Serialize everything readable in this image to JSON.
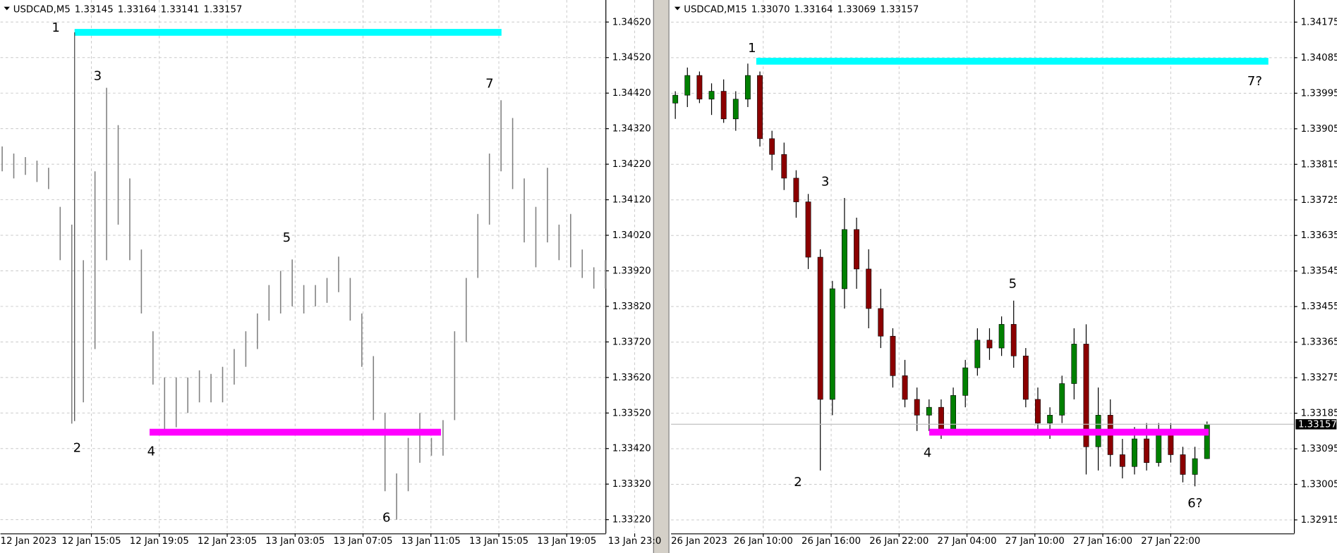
{
  "chart_data": [
    {
      "type": "range",
      "symbol": "USDCAD,M5",
      "ohlc": [
        "1.33145",
        "1.33164",
        "1.33141",
        "1.33157"
      ],
      "color": "#808080",
      "grid": true,
      "categories": [
        "12 Jan 2023",
        "12 Jan 15:05",
        "12 Jan 19:05",
        "12 Jan 23:05",
        "13 Jan 03:05",
        "13 Jan 07:05",
        "13 Jan 11:05",
        "13 Jan 15:05",
        "13 Jan 19:05",
        "13 Jan 23:0"
      ],
      "ylim": [
        1.33186,
        1.34682
      ],
      "yticks": [
        {
          "value": 1.3462,
          "label": "1.34620"
        },
        {
          "value": 1.3452,
          "label": "1.34520"
        },
        {
          "value": 1.3442,
          "label": "1.34420"
        },
        {
          "value": 1.3432,
          "label": "1.34320"
        },
        {
          "value": 1.3422,
          "label": "1.34220"
        },
        {
          "value": 1.3412,
          "label": "1.34120"
        },
        {
          "value": 1.3402,
          "label": "1.34020"
        },
        {
          "value": 1.3392,
          "label": "1.33920"
        },
        {
          "value": 1.3382,
          "label": "1.33820"
        },
        {
          "value": 1.3372,
          "label": "1.33720"
        },
        {
          "value": 1.3362,
          "label": "1.33620"
        },
        {
          "value": 1.3352,
          "label": "1.33520"
        },
        {
          "value": 1.3342,
          "label": "1.33420"
        },
        {
          "value": 1.3332,
          "label": "1.33320"
        },
        {
          "value": 1.3322,
          "label": "1.33220"
        }
      ],
      "high": [
        1.3427,
        1.3425,
        1.3424,
        1.3423,
        1.3421,
        1.341,
        1.3405,
        1.3395,
        1.342,
        1.34435,
        1.3433,
        1.3418,
        1.3398,
        1.3375,
        1.3362,
        1.3362,
        1.3362,
        1.3364,
        1.3363,
        1.3365,
        1.337,
        1.3375,
        1.338,
        1.3388,
        1.3392,
        1.33952,
        1.3388,
        1.3388,
        1.339,
        1.3396,
        1.339,
        1.338,
        1.3368,
        1.3352,
        1.3335,
        1.3345,
        1.3352,
        1.3345,
        1.335,
        1.3375,
        1.339,
        1.3408,
        1.3425,
        1.344,
        1.3435,
        1.3418,
        1.341,
        1.3421,
        1.3405,
        1.3408,
        1.3398,
        1.3393,
        1.3395
      ],
      "low": [
        1.342,
        1.3418,
        1.3419,
        1.3417,
        1.3415,
        1.3395,
        1.3349,
        1.3355,
        1.337,
        1.3395,
        1.3405,
        1.3395,
        1.338,
        1.336,
        1.33462,
        1.3348,
        1.3352,
        1.3355,
        1.3355,
        1.3355,
        1.336,
        1.3365,
        1.337,
        1.3378,
        1.338,
        1.3382,
        1.338,
        1.3382,
        1.3383,
        1.3386,
        1.3378,
        1.3365,
        1.335,
        1.333,
        1.3322,
        1.333,
        1.3338,
        1.334,
        1.334,
        1.335,
        1.3372,
        1.339,
        1.3405,
        1.342,
        1.3415,
        1.34,
        1.3393,
        1.34,
        1.3395,
        1.3393,
        1.339,
        1.3387,
        1.3387
      ],
      "levels": [
        {
          "value": 1.34591,
          "color": "#00ffff"
        },
        {
          "value": 1.33466,
          "color": "#ff00ff"
        }
      ],
      "annotations": [
        "1",
        "2",
        "3",
        "4",
        "5",
        "6",
        "7"
      ]
    },
    {
      "type": "candlestick",
      "symbol": "USDCAD,M15",
      "ohlc": [
        "1.33070",
        "1.33164",
        "1.33069",
        "1.33157"
      ],
      "up_color": "#008000",
      "down_color": "#8b0000",
      "grid": true,
      "categories": [
        "26 Jan 2023",
        "26 Jan 10:00",
        "26 Jan 16:00",
        "26 Jan 22:00",
        "27 Jan 04:00",
        "27 Jan 10:00",
        "27 Jan 16:00",
        "27 Jan 22:00"
      ],
      "ylim": [
        1.32885,
        1.34231
      ],
      "yticks": [
        {
          "value": 1.34175,
          "label": "1.34175"
        },
        {
          "value": 1.34085,
          "label": "1.34085"
        },
        {
          "value": 1.33995,
          "label": "1.33995"
        },
        {
          "value": 1.33905,
          "label": "1.33905"
        },
        {
          "value": 1.33815,
          "label": "1.33815"
        },
        {
          "value": 1.33725,
          "label": "1.33725"
        },
        {
          "value": 1.33635,
          "label": "1.33635"
        },
        {
          "value": 1.33545,
          "label": "1.33545"
        },
        {
          "value": 1.33455,
          "label": "1.33455"
        },
        {
          "value": 1.33365,
          "label": "1.33365"
        },
        {
          "value": 1.33275,
          "label": "1.33275"
        },
        {
          "value": 1.33185,
          "label": "1.33185"
        },
        {
          "value": 1.33095,
          "label": "1.33095"
        },
        {
          "value": 1.33005,
          "label": "1.33005"
        },
        {
          "value": 1.32915,
          "label": "1.32915"
        }
      ],
      "open": [
        1.3397,
        1.3399,
        1.3404,
        1.3398,
        1.34,
        1.3393,
        1.3398,
        1.3404,
        1.3388,
        1.3384,
        1.3378,
        1.3372,
        1.3358,
        1.3322,
        1.335,
        1.3365,
        1.3355,
        1.3345,
        1.3338,
        1.3328,
        1.3322,
        1.3318,
        1.332,
        1.3314,
        1.3323,
        1.333,
        1.3337,
        1.3335,
        1.3341,
        1.3333,
        1.3322,
        1.3316,
        1.3318,
        1.3326,
        1.3336,
        1.331,
        1.3318,
        1.3308,
        1.3305,
        1.3312,
        1.3306,
        1.3314,
        1.3308,
        1.3303,
        1.3307
      ],
      "high": [
        1.34,
        1.3406,
        1.3405,
        1.3402,
        1.3403,
        1.34,
        1.3407,
        1.3405,
        1.339,
        1.3387,
        1.338,
        1.3374,
        1.336,
        1.3352,
        1.3373,
        1.3368,
        1.336,
        1.335,
        1.334,
        1.3332,
        1.3325,
        1.3322,
        1.3322,
        1.3325,
        1.3332,
        1.334,
        1.334,
        1.3343,
        1.3347,
        1.3335,
        1.3325,
        1.332,
        1.3328,
        1.334,
        1.3341,
        1.3325,
        1.3322,
        1.3312,
        1.3315,
        1.3316,
        1.3316,
        1.3316,
        1.331,
        1.331,
        1.33164
      ],
      "low": [
        1.3393,
        1.3396,
        1.3397,
        1.3394,
        1.3392,
        1.339,
        1.3396,
        1.3386,
        1.338,
        1.3375,
        1.3368,
        1.3355,
        1.3304,
        1.3318,
        1.3345,
        1.335,
        1.334,
        1.3335,
        1.3325,
        1.332,
        1.3314,
        1.3314,
        1.3312,
        1.3313,
        1.332,
        1.3328,
        1.3332,
        1.3333,
        1.333,
        1.332,
        1.3313,
        1.3312,
        1.3316,
        1.3322,
        1.3303,
        1.3304,
        1.3305,
        1.3302,
        1.3303,
        1.3304,
        1.3305,
        1.3306,
        1.3301,
        1.33,
        1.33069
      ],
      "close": [
        1.3399,
        1.3404,
        1.3398,
        1.34,
        1.3393,
        1.3398,
        1.3404,
        1.3388,
        1.3384,
        1.3378,
        1.3372,
        1.3358,
        1.3322,
        1.335,
        1.3365,
        1.3355,
        1.3345,
        1.3338,
        1.3328,
        1.3322,
        1.3318,
        1.332,
        1.3314,
        1.3323,
        1.333,
        1.3337,
        1.3335,
        1.3341,
        1.3333,
        1.3322,
        1.3316,
        1.3318,
        1.3326,
        1.3336,
        1.331,
        1.3318,
        1.3308,
        1.3305,
        1.3312,
        1.3306,
        1.3314,
        1.3308,
        1.3303,
        1.3307,
        1.33157
      ],
      "levels": [
        {
          "value": 1.34076,
          "color": "#00ffff"
        },
        {
          "value": 1.33137,
          "color": "#ff00ff"
        }
      ],
      "annotations": [
        "1",
        "2",
        "3",
        "4",
        "5",
        "6?",
        "7?"
      ]
    }
  ]
}
